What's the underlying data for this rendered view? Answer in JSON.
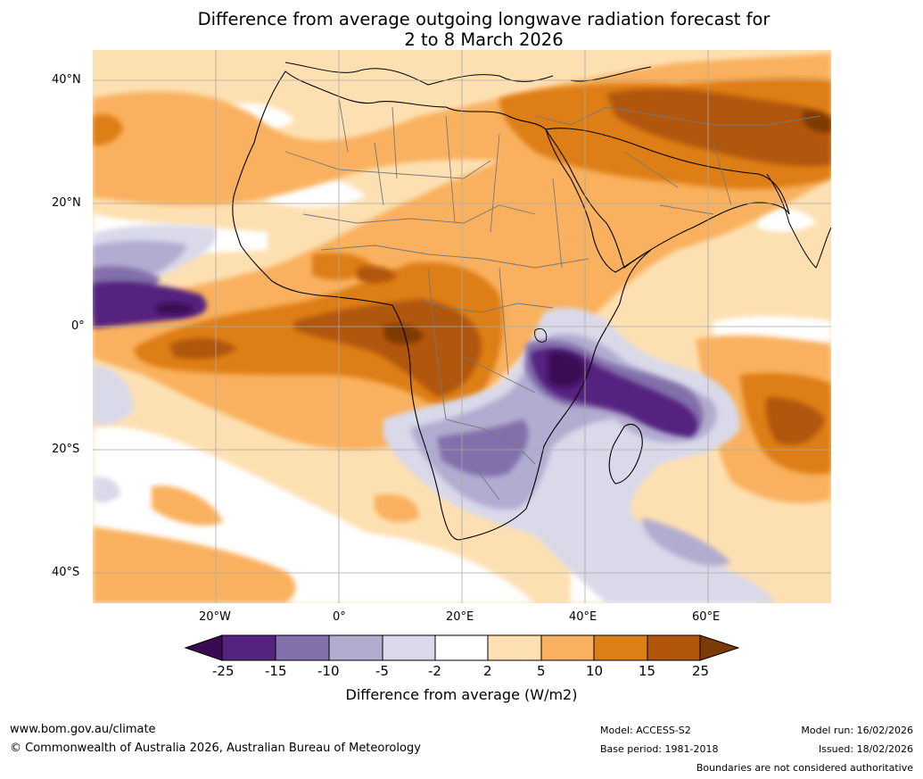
{
  "title": {
    "line1": "Difference from average outgoing longwave radiation forecast for",
    "line2": "2 to 8 March 2026"
  },
  "axes": {
    "lat_labels": [
      "40°N",
      "20°N",
      "0°",
      "20°S",
      "40°S"
    ],
    "lon_labels": [
      "20°W",
      "0°",
      "20°E",
      "40°E",
      "60°E"
    ]
  },
  "colorbar": {
    "label": "Difference from average (W/m2)",
    "ticks": [
      "-25",
      "-15",
      "-10",
      "-5",
      "-2",
      "2",
      "5",
      "10",
      "15",
      "25"
    ],
    "colors": [
      "#3b0a55",
      "#55237f",
      "#8270ab",
      "#b2acd0",
      "#d9d9ea",
      "#ffffff",
      "#fde0b2",
      "#f9b15f",
      "#de7e16",
      "#b15608",
      "#7e3a06"
    ]
  },
  "footer": {
    "website": "www.bom.gov.au/climate",
    "copyright": "© Commonwealth of Australia 2026, Australian Bureau of Meteorology",
    "model": "Model: ACCESS-S2",
    "base_period": "Base period: 1981-2018",
    "model_run": "Model run: 16/02/2026",
    "issued": "Issued: 18/02/2026",
    "disclaimer": "Boundaries are not considered authoritative"
  }
}
